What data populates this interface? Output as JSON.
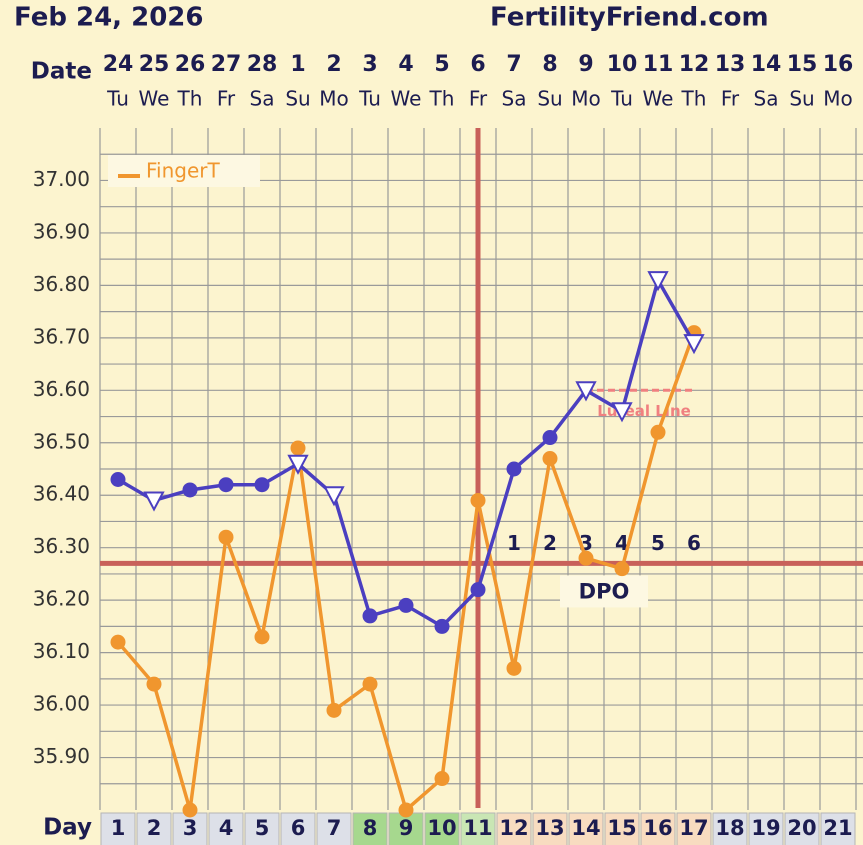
{
  "chart_data": {
    "type": "line",
    "title": "Feb 24, 2026",
    "site": "FertilityFriend.com",
    "date_label": "Date",
    "day_label": "Day",
    "dates": [
      24,
      25,
      26,
      27,
      28,
      1,
      2,
      3,
      4,
      5,
      6,
      7,
      8,
      9,
      10,
      11,
      12,
      13,
      14,
      15,
      16
    ],
    "weekdays": [
      "Tu",
      "We",
      "Th",
      "Fr",
      "Sa",
      "Su",
      "Mo",
      "Tu",
      "We",
      "Th",
      "Fr",
      "Sa",
      "Su",
      "Mo",
      "Tu",
      "We",
      "Th",
      "Fr",
      "Sa",
      "Su",
      "Mo"
    ],
    "categories": [
      1,
      2,
      3,
      4,
      5,
      6,
      7,
      8,
      9,
      10,
      11,
      12,
      13,
      14,
      15,
      16,
      17,
      18,
      19,
      20,
      21
    ],
    "day_fill": [
      "#dde0e8",
      "#dde0e8",
      "#dde0e8",
      "#dde0e8",
      "#dde0e8",
      "#dde0e8",
      "#dde0e8",
      "#a6d88e",
      "#a6d88e",
      "#a6d88e",
      "#c9e6b4",
      "#f8dcc0",
      "#f8dcc0",
      "#f8dcc0",
      "#f8dcc0",
      "#f8dcc0",
      "#f8dcc0",
      "#dde0e8",
      "#dde0e8",
      "#dde0e8",
      "#dde0e8"
    ],
    "series": [
      {
        "name": "FingerT",
        "color": "#f0962e",
        "values": [
          36.12,
          36.04,
          35.8,
          36.32,
          36.13,
          36.49,
          35.99,
          36.04,
          35.8,
          35.86,
          36.39,
          36.07,
          36.47,
          36.28,
          36.26,
          36.52,
          36.71,
          null,
          null,
          null,
          null
        ]
      },
      {
        "color": "#4b3fc0",
        "values": [
          36.43,
          36.39,
          36.41,
          36.42,
          36.42,
          36.46,
          36.4,
          36.17,
          36.19,
          36.15,
          36.22,
          36.45,
          36.51,
          36.6,
          36.56,
          36.81,
          36.69,
          null,
          null,
          null,
          null
        ],
        "markers": [
          "circle",
          "triangle",
          "circle",
          "circle",
          "circle",
          "triangle",
          "triangle",
          "circle",
          "circle",
          "circle",
          "circle",
          "circle",
          "circle",
          "triangle",
          "triangle",
          "triangle",
          "triangle",
          null,
          null,
          null,
          null
        ]
      }
    ],
    "ylim": [
      35.8,
      37.1
    ],
    "yticks": [
      {
        "value": 35.9,
        "label": "35.90"
      },
      {
        "value": 36.0,
        "label": "36.00"
      },
      {
        "value": 36.1,
        "label": "36.10"
      },
      {
        "value": 36.2,
        "label": "36.20"
      },
      {
        "value": 36.3,
        "label": "36.30"
      },
      {
        "value": 36.4,
        "label": "36.40"
      },
      {
        "value": 36.5,
        "label": "36.50"
      },
      {
        "value": 36.6,
        "label": "36.60"
      },
      {
        "value": 36.7,
        "label": "36.70"
      },
      {
        "value": 36.8,
        "label": "36.80"
      },
      {
        "value": 36.9,
        "label": "36.90"
      },
      {
        "value": 37.0,
        "label": "37.00"
      }
    ],
    "grid": true,
    "coverline": 36.27,
    "coverline_color": "#c8605a",
    "ovulation_day": 11,
    "luteal_line": {
      "value": 36.6,
      "label": "Luteal Line",
      "from_day": 14,
      "to_day": 17,
      "color": "#f08080"
    },
    "dpo": {
      "labels": [
        1,
        2,
        3,
        4,
        5,
        6
      ],
      "start_day": 12,
      "label": "DPO"
    }
  }
}
